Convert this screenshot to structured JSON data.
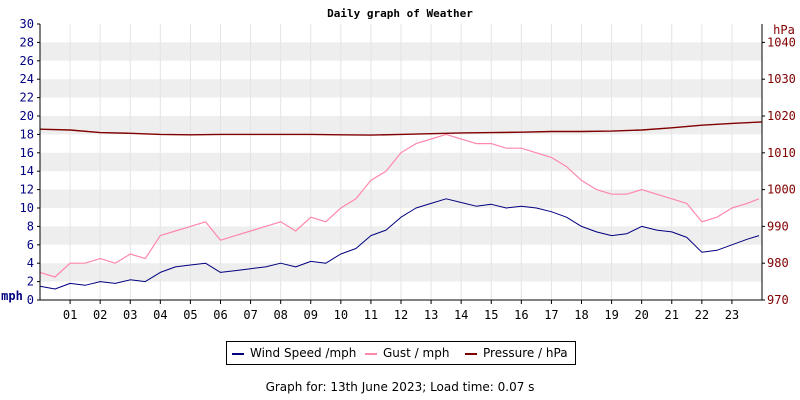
{
  "chart_data": {
    "type": "line",
    "title": "Daily graph of Weather",
    "x_ticks": [
      "01",
      "02",
      "03",
      "04",
      "05",
      "06",
      "07",
      "08",
      "09",
      "10",
      "11",
      "12",
      "13",
      "14",
      "15",
      "16",
      "17",
      "18",
      "19",
      "20",
      "21",
      "22",
      "23"
    ],
    "x_range_hours": [
      0,
      24
    ],
    "y_left": {
      "unit_label": "mph",
      "range": [
        0,
        30
      ],
      "ticks": [
        "0",
        "2",
        "4",
        "6",
        "8",
        "10",
        "12",
        "14",
        "16",
        "18",
        "20",
        "22",
        "24",
        "26",
        "28",
        "30"
      ]
    },
    "y_right": {
      "unit_label": "hPa",
      "range": [
        970,
        1045
      ],
      "ticks": [
        "970",
        "980",
        "990",
        "1000",
        "1010",
        "1020",
        "1030",
        "1040"
      ]
    },
    "grid": true,
    "legend_position": "bottom",
    "colors": {
      "wind": "#000080",
      "gust": "#ff88aa",
      "pressure": "#800000",
      "axis_left": "#000080",
      "axis_right": "#800000",
      "band": "#eeeeee"
    },
    "series": [
      {
        "name": "Wind Speed /mph",
        "axis": "left",
        "x_hours": [
          0,
          0.5,
          1,
          1.5,
          2,
          2.5,
          3,
          3.5,
          4,
          4.5,
          5,
          5.5,
          6,
          6.5,
          7,
          7.5,
          8,
          8.5,
          9,
          9.5,
          10,
          10.5,
          11,
          11.5,
          12,
          12.5,
          13,
          13.5,
          14,
          14.5,
          15,
          15.5,
          16,
          16.5,
          17,
          17.5,
          18,
          18.5,
          19,
          19.5,
          20,
          20.5,
          21,
          21.5,
          22,
          22.5,
          23,
          23.5,
          23.9
        ],
        "values": [
          1.5,
          1.2,
          1.8,
          1.6,
          2.0,
          1.8,
          2.2,
          2.0,
          3.0,
          3.6,
          3.8,
          4.0,
          3.0,
          3.2,
          3.4,
          3.6,
          4.0,
          3.6,
          4.2,
          4.0,
          5.0,
          5.6,
          7.0,
          7.6,
          9.0,
          10.0,
          10.5,
          11.0,
          10.6,
          10.2,
          10.4,
          10.0,
          10.2,
          10.0,
          9.6,
          9.0,
          8.0,
          7.4,
          7.0,
          7.2,
          8.0,
          7.6,
          7.4,
          6.8,
          5.2,
          5.4,
          6.0,
          6.6,
          7.0
        ]
      },
      {
        "name": "Gust / mph",
        "axis": "left",
        "x_hours": [
          0,
          0.5,
          1,
          1.5,
          2,
          2.5,
          3,
          3.5,
          4,
          4.5,
          5,
          5.5,
          6,
          6.5,
          7,
          7.5,
          8,
          8.5,
          9,
          9.5,
          10,
          10.5,
          11,
          11.5,
          12,
          12.5,
          13,
          13.5,
          14,
          14.5,
          15,
          15.5,
          16,
          16.5,
          17,
          17.5,
          18,
          18.5,
          19,
          19.5,
          20,
          20.5,
          21,
          21.5,
          22,
          22.5,
          23,
          23.5,
          23.9
        ],
        "values": [
          3,
          2.5,
          4,
          4,
          4.5,
          4,
          5,
          4.5,
          7,
          7.5,
          8,
          8.5,
          6.5,
          7,
          7.5,
          8,
          8.5,
          7.5,
          9,
          8.5,
          10,
          11,
          13,
          14,
          16,
          17,
          17.5,
          18,
          17.5,
          17,
          17,
          16.5,
          16.5,
          16,
          15.5,
          14.5,
          13,
          12,
          11.5,
          11.5,
          12,
          11.5,
          11,
          10.5,
          8.5,
          9,
          10,
          10.5,
          11
        ]
      },
      {
        "name": "Pressure / hPa",
        "axis": "right",
        "x_hours": [
          0,
          1,
          2,
          3,
          4,
          5,
          6,
          7,
          8,
          9,
          10,
          11,
          12,
          13,
          14,
          15,
          16,
          17,
          18,
          19,
          20,
          21,
          22,
          23,
          24
        ],
        "values": [
          1016.4,
          1016.2,
          1015.5,
          1015.3,
          1015.0,
          1014.9,
          1015.0,
          1015.0,
          1015.0,
          1015.0,
          1014.9,
          1014.8,
          1015.0,
          1015.2,
          1015.4,
          1015.5,
          1015.6,
          1015.8,
          1015.8,
          1015.9,
          1016.2,
          1016.8,
          1017.5,
          1018.0,
          1018.4
        ]
      }
    ]
  },
  "legend": {
    "wind": "Wind Speed /mph",
    "gust": "Gust / mph",
    "pressure": "Pressure / hPa"
  },
  "footer": "Graph for: 13th June 2023; Load time: 0.07 s"
}
